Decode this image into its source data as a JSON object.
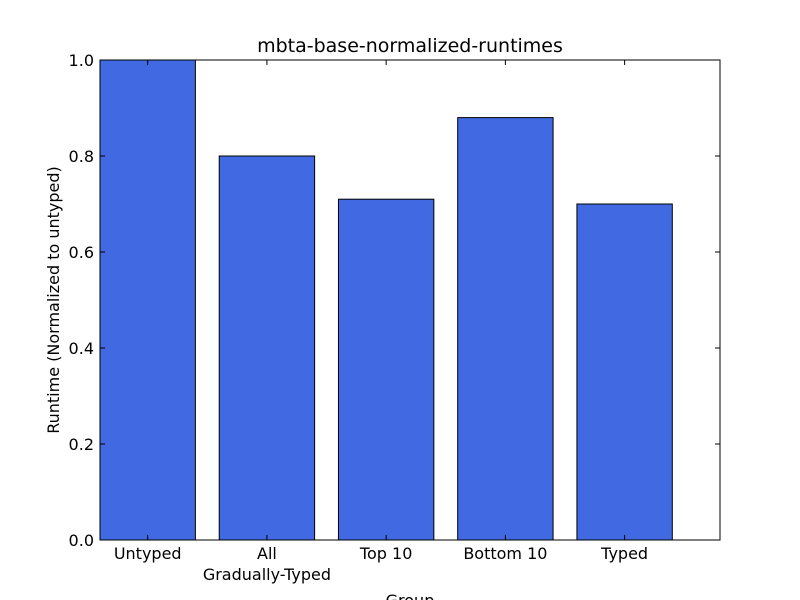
{
  "chart_data": {
    "type": "bar",
    "title": "mbta-base-normalized-runtimes",
    "xlabel": "Group",
    "ylabel": "Runtime (Normalized to untyped)",
    "categories": [
      "Untyped",
      "All\nGradually-Typed",
      "Top 10",
      "Bottom 10",
      "Typed"
    ],
    "values": [
      1.0,
      0.8,
      0.71,
      0.88,
      0.7
    ],
    "ylim": [
      0,
      1.0
    ],
    "yticks": [
      "0.0",
      "0.2",
      "0.4",
      "0.6",
      "0.8",
      "1.0"
    ],
    "grid": false,
    "bar_color": "#4169e1"
  }
}
